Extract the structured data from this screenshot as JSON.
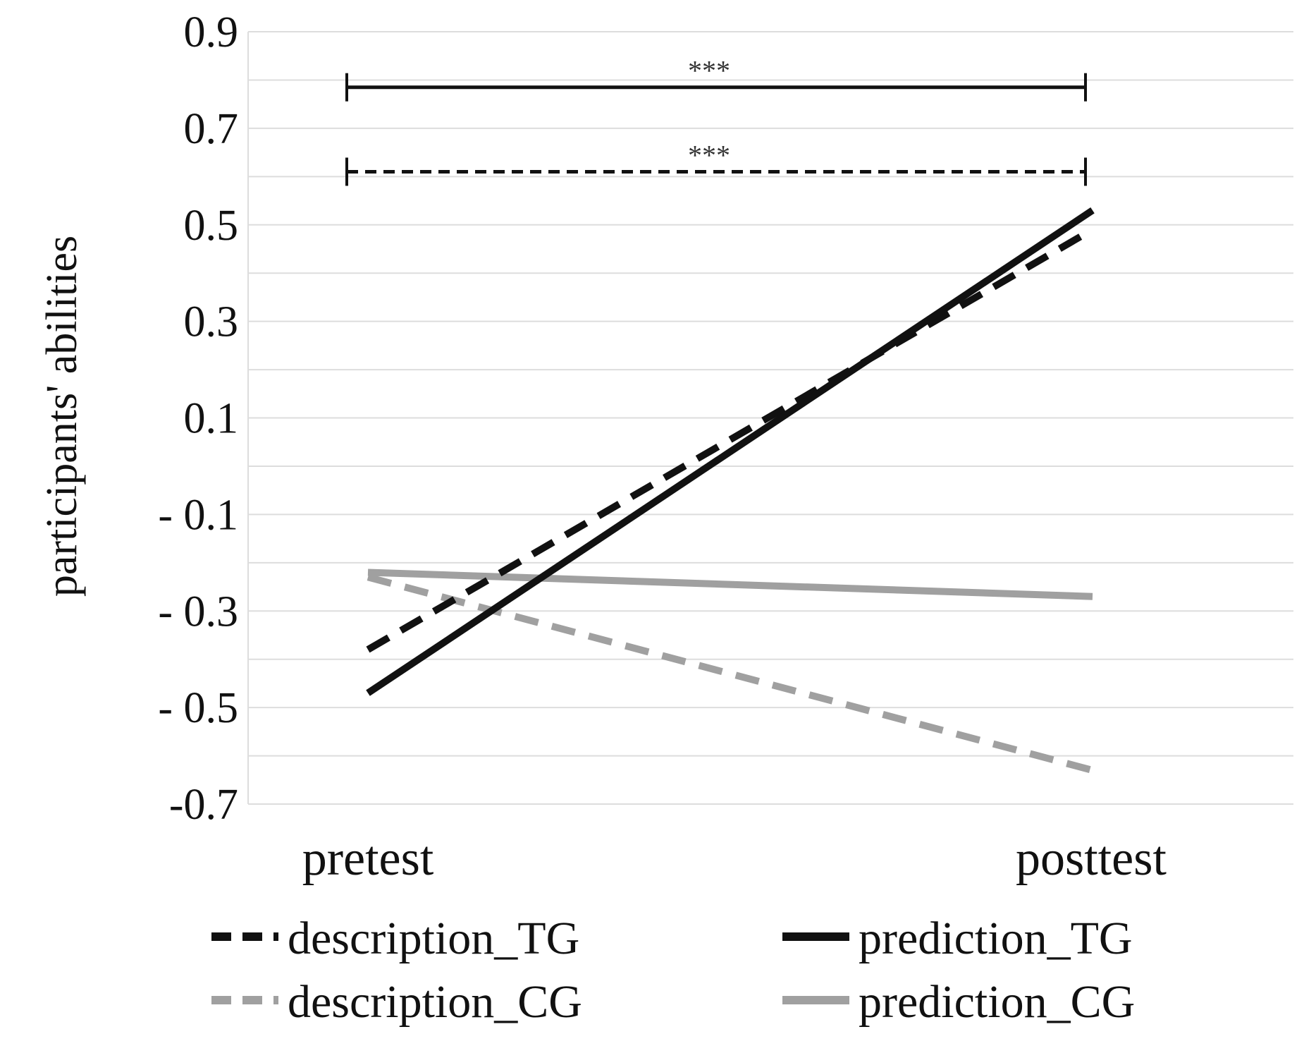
{
  "chart_data": {
    "type": "line",
    "categories": [
      "pretest",
      "posttest"
    ],
    "ylabel": "participants' abilities",
    "ylim": [
      -0.7,
      0.9
    ],
    "yticks": [
      0.9,
      0.7,
      0.5,
      0.3,
      0.1,
      -0.1,
      -0.3,
      -0.5,
      -0.7
    ],
    "ytick_labels": [
      "0.9",
      "0.7",
      "0.5",
      "0.3",
      "0.1",
      "- 0.1",
      "- 0.3",
      "- 0.5",
      "-0.7"
    ],
    "grid": true,
    "legend_position": "bottom",
    "series": [
      {
        "name": "description_TG",
        "values": [
          -0.38,
          0.49
        ],
        "color": "#111111",
        "style": "dashed"
      },
      {
        "name": "prediction_TG",
        "values": [
          -0.47,
          0.53
        ],
        "color": "#111111",
        "style": "solid"
      },
      {
        "name": "description_CG",
        "values": [
          -0.23,
          -0.63
        ],
        "color": "#a0a0a0",
        "style": "dashed"
      },
      {
        "name": "prediction_CG",
        "values": [
          -0.22,
          -0.27
        ],
        "color": "#a0a0a0",
        "style": "solid"
      }
    ],
    "significance": [
      {
        "label": "***",
        "y": 0.785,
        "style": "solid"
      },
      {
        "label": "***",
        "y": 0.61,
        "style": "dashed"
      }
    ]
  }
}
